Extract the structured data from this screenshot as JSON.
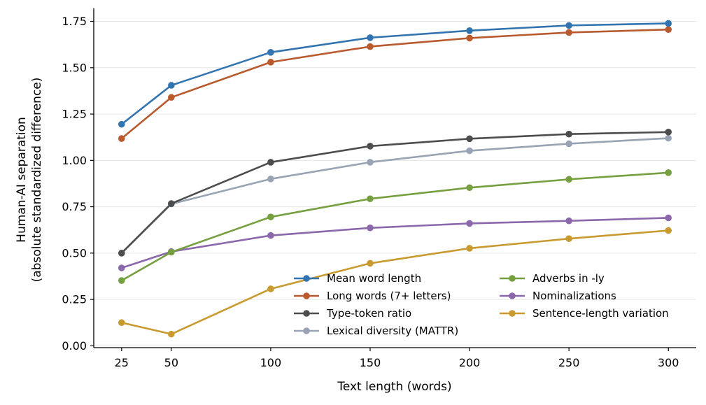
{
  "chart_data": {
    "type": "line",
    "xlabel": "Text length (words)",
    "ylabel_line1": "Human-AI separation",
    "ylabel_line2": "(absolute standardized difference)",
    "x": [
      25,
      50,
      100,
      150,
      200,
      250,
      300
    ],
    "xticks": [
      "25",
      "50",
      "100",
      "150",
      "200",
      "250",
      "300"
    ],
    "yticks": [
      "0.00",
      "0.25",
      "0.50",
      "0.75",
      "1.00",
      "1.25",
      "1.50",
      "1.75"
    ],
    "ylim": [
      -0.01,
      1.82
    ],
    "xlim": [
      11,
      314
    ],
    "grid": "horizontal",
    "legend_position": "lower-right",
    "series": [
      {
        "name": "Mean word length",
        "color": "#3274b0",
        "values": [
          1.195,
          1.405,
          1.583,
          1.662,
          1.7,
          1.728,
          1.739
        ]
      },
      {
        "name": "Long words (7+ letters)",
        "color": "#b85a2e",
        "values": [
          1.118,
          1.34,
          1.53,
          1.614,
          1.66,
          1.69,
          1.706
        ]
      },
      {
        "name": "Type-token ratio",
        "color": "#4d4d4d",
        "values": [
          0.5,
          0.767,
          0.99,
          1.077,
          1.117,
          1.142,
          1.153
        ]
      },
      {
        "name": "Lexical diversity (MATTR)",
        "color": "#98a4b3",
        "values": [
          0.5,
          0.765,
          0.9,
          0.99,
          1.052,
          1.09,
          1.12
        ]
      },
      {
        "name": "Adverbs in -ly",
        "color": "#76a040",
        "values": [
          0.352,
          0.505,
          0.695,
          0.793,
          0.853,
          0.898,
          0.934
        ]
      },
      {
        "name": "Nominalizations",
        "color": "#8b68ab",
        "values": [
          0.42,
          0.508,
          0.595,
          0.636,
          0.66,
          0.674,
          0.69
        ]
      },
      {
        "name": "Sentence-length variation",
        "color": "#c99a30",
        "values": [
          0.125,
          0.063,
          0.307,
          0.445,
          0.526,
          0.578,
          0.622
        ]
      }
    ]
  }
}
